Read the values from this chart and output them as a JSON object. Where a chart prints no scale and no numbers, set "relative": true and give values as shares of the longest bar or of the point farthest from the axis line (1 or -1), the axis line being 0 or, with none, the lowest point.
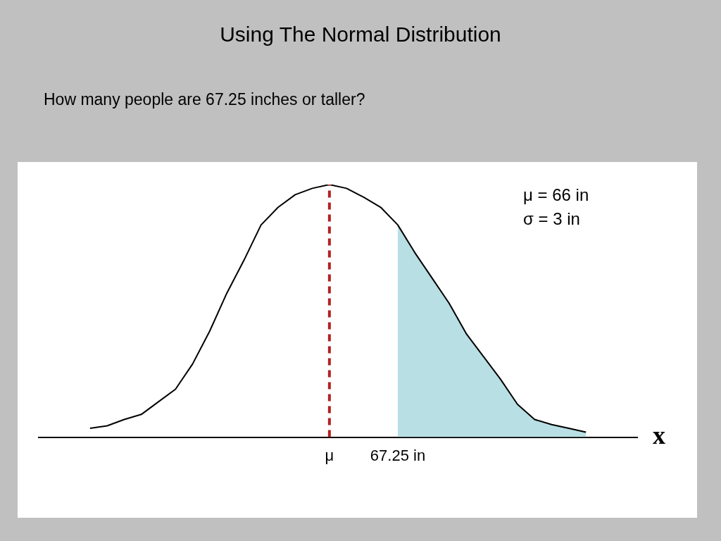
{
  "chart_data": {
    "type": "line",
    "title": "Using The Normal Distribution",
    "subtitle": "How many people are 67.25 inches or taller?",
    "xlabel": "x",
    "relative": true,
    "categories": [
      null,
      null,
      null,
      null,
      null,
      null,
      null,
      null,
      null,
      null,
      null,
      null,
      null,
      null,
      null,
      null,
      null,
      "μ",
      null,
      null,
      null,
      "67.25 in",
      null,
      null,
      null,
      null,
      null,
      null,
      null,
      null,
      null,
      null,
      null,
      null,
      null,
      null
    ],
    "series": [
      {
        "color": "#000000",
        "values": [
          null,
          null,
          null,
          0.035,
          0.045,
          0.07,
          0.09,
          0.14,
          0.19,
          0.29,
          0.42,
          0.57,
          0.7,
          0.84,
          0.91,
          0.96,
          0.985,
          1,
          0.985,
          0.95,
          0.91,
          0.84,
          0.73,
          0.63,
          0.53,
          0.41,
          0.32,
          0.23,
          0.13,
          0.07,
          0.05,
          0.035,
          0.02,
          null,
          null,
          null
        ]
      },
      {
        "type": "area",
        "color": "#b8dfe3",
        "values": [
          null,
          null,
          null,
          null,
          null,
          null,
          null,
          null,
          null,
          null,
          null,
          null,
          null,
          null,
          null,
          null,
          null,
          null,
          null,
          null,
          null,
          0.84,
          0.73,
          0.63,
          0.53,
          0.41,
          0.32,
          0.23,
          0.13,
          0.07,
          0.05,
          0.035,
          0.02,
          null,
          null,
          null
        ]
      }
    ],
    "ref_lines": [
      {
        "axis": "x",
        "value": "μ",
        "color": "#b22222",
        "line_style": "dashed"
      }
    ],
    "annotations": [
      "μ = 66 in",
      "σ = 3 in"
    ],
    "grid": false,
    "legend": false,
    "marker": "none",
    "line_style": "solid"
  }
}
